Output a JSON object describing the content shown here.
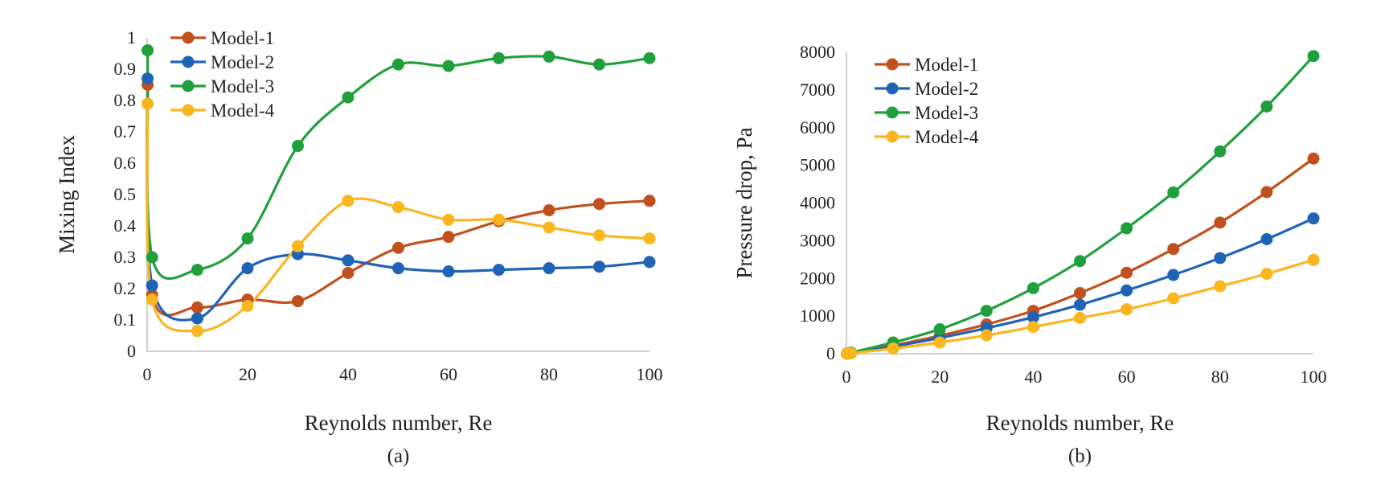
{
  "colors": {
    "Model-1": "#c0501d",
    "Model-2": "#1f63b6",
    "Model-3": "#20a03c",
    "Model-4": "#fbb51e",
    "axis": "#d0d0d0"
  },
  "chart_data": [
    {
      "type": "line",
      "smooth": true,
      "panel_label": "(a)",
      "title": "",
      "xlabel": "Reynolds number, Re",
      "ylabel": "Mixing Index",
      "xlim": [
        0,
        100
      ],
      "ylim": [
        0,
        1
      ],
      "xticks": [
        0,
        20,
        40,
        60,
        80,
        100
      ],
      "yticks": [
        0,
        0.1,
        0.2,
        0.3,
        0.4,
        0.5,
        0.6,
        0.7,
        0.8,
        0.9,
        1
      ],
      "grid": false,
      "legend": "top-left",
      "x": [
        0.1,
        1,
        10,
        20,
        30,
        40,
        50,
        60,
        70,
        80,
        90,
        100
      ],
      "series": [
        {
          "name": "Model-1",
          "values": [
            0.85,
            0.18,
            0.14,
            0.165,
            0.16,
            0.25,
            0.33,
            0.365,
            0.415,
            0.45,
            0.47,
            0.48
          ]
        },
        {
          "name": "Model-2",
          "values": [
            0.87,
            0.21,
            0.105,
            0.265,
            0.31,
            0.29,
            0.265,
            0.255,
            0.26,
            0.265,
            0.27,
            0.285
          ]
        },
        {
          "name": "Model-3",
          "values": [
            0.96,
            0.3,
            0.26,
            0.36,
            0.655,
            0.81,
            0.915,
            0.91,
            0.935,
            0.94,
            0.915,
            0.935
          ]
        },
        {
          "name": "Model-4",
          "values": [
            0.79,
            0.165,
            0.065,
            0.145,
            0.335,
            0.48,
            0.46,
            0.42,
            0.42,
            0.395,
            0.37,
            0.36
          ]
        }
      ]
    },
    {
      "type": "line",
      "smooth": true,
      "panel_label": "(b)",
      "title": "",
      "xlabel": "Reynolds number, Re",
      "ylabel": "Pressure drop, Pa",
      "xlim": [
        0,
        100
      ],
      "ylim": [
        0,
        8000
      ],
      "xticks": [
        0,
        20,
        40,
        60,
        80,
        100
      ],
      "yticks": [
        0,
        1000,
        2000,
        3000,
        4000,
        5000,
        6000,
        7000,
        8000
      ],
      "grid": false,
      "legend": "top-left",
      "x": [
        0.1,
        1,
        10,
        20,
        30,
        40,
        50,
        60,
        70,
        80,
        90,
        100
      ],
      "series": [
        {
          "name": "Model-1",
          "values": [
            2,
            20,
            220,
            480,
            780,
            1140,
            1610,
            2150,
            2780,
            3480,
            4290,
            5180
          ]
        },
        {
          "name": "Model-2",
          "values": [
            2,
            18,
            190,
            420,
            680,
            970,
            1300,
            1680,
            2090,
            2540,
            3040,
            3590
          ]
        },
        {
          "name": "Model-3",
          "values": [
            3,
            30,
            300,
            650,
            1140,
            1740,
            2460,
            3330,
            4280,
            5370,
            6560,
            7900
          ]
        },
        {
          "name": "Model-4",
          "values": [
            1,
            13,
            140,
            300,
            490,
            710,
            950,
            1180,
            1470,
            1790,
            2120,
            2490
          ]
        }
      ]
    }
  ]
}
